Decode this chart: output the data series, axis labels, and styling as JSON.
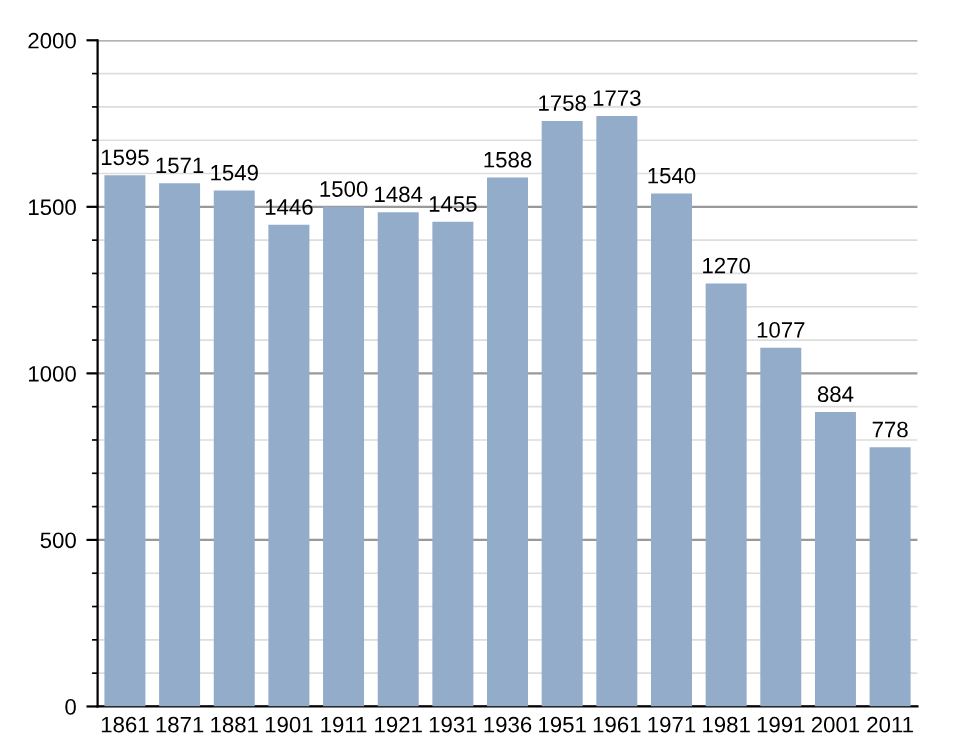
{
  "chart_data": {
    "type": "bar",
    "categories": [
      "1861",
      "1871",
      "1881",
      "1901",
      "1911",
      "1921",
      "1931",
      "1936",
      "1951",
      "1961",
      "1971",
      "1981",
      "1991",
      "2001",
      "2011"
    ],
    "values": [
      1595,
      1571,
      1549,
      1446,
      1500,
      1484,
      1455,
      1588,
      1758,
      1773,
      1540,
      1270,
      1077,
      884,
      778
    ],
    "color": "#93acc9",
    "ylim": [
      0,
      2000
    ],
    "yticks": [
      0,
      500,
      1000,
      1500,
      2000
    ],
    "grid": "y",
    "data_labels": true
  }
}
